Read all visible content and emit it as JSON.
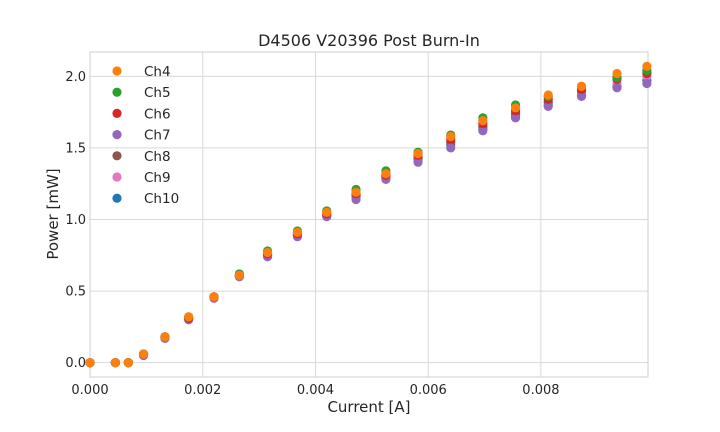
{
  "chart_data": {
    "type": "scatter",
    "title": "D4506 V20396 Post Burn-In",
    "xlabel": "Current [A]",
    "ylabel": "Power [mW]",
    "xlim": [
      0,
      0.0099
    ],
    "ylim": [
      -0.1,
      2.17
    ],
    "grid": true,
    "legend_position": "top-left",
    "x_ticks": [
      "0.000",
      "0.002",
      "0.004",
      "0.006",
      "0.008"
    ],
    "y_ticks": [
      "0.0",
      "0.5",
      "1.0",
      "1.5",
      "2.0"
    ],
    "x": [
      0.0,
      0.00045,
      0.00068,
      0.00095,
      0.00133,
      0.00175,
      0.0022,
      0.00265,
      0.00315,
      0.00368,
      0.0042,
      0.00472,
      0.00525,
      0.00582,
      0.0064,
      0.00697,
      0.00755,
      0.00813,
      0.00872,
      0.00935,
      0.00988
    ],
    "series": [
      {
        "name": "Ch4",
        "color": "#ff7f0e",
        "values": [
          0.0,
          0.0,
          0.0,
          0.06,
          0.18,
          0.32,
          0.46,
          0.61,
          0.77,
          0.91,
          1.05,
          1.19,
          1.32,
          1.46,
          1.58,
          1.69,
          1.78,
          1.87,
          1.93,
          2.02,
          2.07
        ]
      },
      {
        "name": "Ch5",
        "color": "#2ca02c",
        "values": [
          0.0,
          0.0,
          0.0,
          0.06,
          0.18,
          0.32,
          0.46,
          0.62,
          0.78,
          0.92,
          1.06,
          1.21,
          1.34,
          1.47,
          1.59,
          1.71,
          1.8,
          1.86,
          1.93,
          1.99,
          2.04
        ]
      },
      {
        "name": "Ch6",
        "color": "#d62728",
        "values": [
          0.0,
          0.0,
          0.0,
          0.06,
          0.18,
          0.31,
          0.46,
          0.61,
          0.76,
          0.9,
          1.04,
          1.18,
          1.31,
          1.45,
          1.56,
          1.67,
          1.76,
          1.84,
          1.91,
          1.98,
          2.02
        ]
      },
      {
        "name": "Ch7",
        "color": "#9467bd",
        "values": [
          0.0,
          0.0,
          0.0,
          0.05,
          0.17,
          0.3,
          0.45,
          0.6,
          0.74,
          0.88,
          1.02,
          1.14,
          1.28,
          1.4,
          1.5,
          1.62,
          1.71,
          1.79,
          1.86,
          1.92,
          1.95
        ]
      },
      {
        "name": "Ch8",
        "color": "#8c564b",
        "values": [
          0.0,
          0.0,
          0.0,
          0.06,
          0.18,
          0.31,
          0.46,
          0.61,
          0.75,
          0.89,
          1.03,
          1.17,
          1.3,
          1.43,
          1.54,
          1.65,
          1.74,
          1.82,
          1.9,
          1.99,
          2.03
        ]
      },
      {
        "name": "Ch9",
        "color": "#e377c2",
        "values": [
          0.0,
          0.0,
          0.0,
          0.06,
          0.18,
          0.31,
          0.46,
          0.61,
          0.75,
          0.89,
          1.03,
          1.17,
          1.3,
          1.44,
          1.54,
          1.65,
          1.74,
          1.82,
          1.89,
          1.95,
          2.0
        ]
      },
      {
        "name": "Ch10",
        "color": "#1f77b4",
        "values": [
          0.0,
          0.0,
          0.0,
          0.06,
          0.18,
          0.31,
          0.46,
          0.61,
          0.75,
          0.89,
          1.03,
          1.16,
          1.29,
          1.42,
          1.52,
          1.63,
          1.72,
          1.8,
          1.87,
          1.93,
          1.97
        ]
      }
    ]
  }
}
